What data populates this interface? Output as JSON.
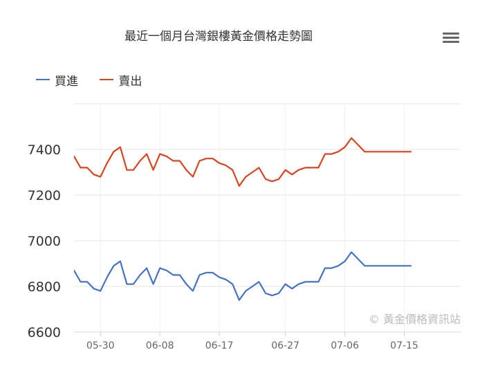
{
  "header": {
    "title": "最近一個月台灣銀樓黃金價格走勢圖",
    "menu_icon": "hamburger-menu-icon"
  },
  "credits": "© 黃金價格資訊站",
  "colors": {
    "buy": "#4472c4",
    "sell": "#d9441e",
    "grid": "#e6e6e6"
  },
  "chart_data": {
    "type": "line",
    "title": "最近一個月台灣銀樓黃金價格走勢圖",
    "xlabel": "",
    "ylabel": "",
    "ylim": [
      6600,
      7600
    ],
    "yticks": [
      6600,
      6800,
      7000,
      7200,
      7400
    ],
    "grid": true,
    "legend_position": "top-left",
    "x": [
      "05-26",
      "05-27",
      "05-28",
      "05-29",
      "05-30",
      "05-31",
      "06-01",
      "06-02",
      "06-03",
      "06-04",
      "06-05",
      "06-06",
      "06-07",
      "06-08",
      "06-09",
      "06-10",
      "06-11",
      "06-12",
      "06-13",
      "06-14",
      "06-15",
      "06-16",
      "06-17",
      "06-18",
      "06-19",
      "06-20",
      "06-21",
      "06-22",
      "06-23",
      "06-24",
      "06-25",
      "06-26",
      "06-27",
      "06-28",
      "06-29",
      "06-30",
      "07-01",
      "07-02",
      "07-03",
      "07-04",
      "07-05",
      "07-06",
      "07-07",
      "07-08",
      "07-09",
      "07-10",
      "07-11",
      "07-12",
      "07-13",
      "07-14",
      "07-15",
      "07-16"
    ],
    "xticks": [
      "05-30",
      "06-08",
      "06-17",
      "06-27",
      "07-06",
      "07-15"
    ],
    "series": [
      {
        "name": "買進",
        "color": "#4472c4",
        "values": [
          6870,
          6820,
          6820,
          6790,
          6780,
          6840,
          6890,
          6910,
          6810,
          6810,
          6850,
          6880,
          6810,
          6880,
          6870,
          6850,
          6850,
          6810,
          6780,
          6850,
          6860,
          6860,
          6840,
          6830,
          6810,
          6740,
          6780,
          6800,
          6820,
          6770,
          6760,
          6770,
          6810,
          6790,
          6810,
          6820,
          6820,
          6820,
          6880,
          6880,
          6890,
          6910,
          6950,
          6920,
          6890,
          6890,
          6890,
          6890,
          6890,
          6890,
          6890,
          6890
        ]
      },
      {
        "name": "賣出",
        "color": "#d9441e",
        "values": [
          7370,
          7320,
          7320,
          7290,
          7280,
          7340,
          7390,
          7410,
          7310,
          7310,
          7350,
          7380,
          7310,
          7380,
          7370,
          7350,
          7350,
          7310,
          7280,
          7350,
          7360,
          7360,
          7340,
          7330,
          7310,
          7240,
          7280,
          7300,
          7320,
          7270,
          7260,
          7270,
          7310,
          7290,
          7310,
          7320,
          7320,
          7320,
          7380,
          7380,
          7390,
          7410,
          7450,
          7420,
          7390,
          7390,
          7390,
          7390,
          7390,
          7390,
          7390,
          7390
        ]
      }
    ]
  }
}
